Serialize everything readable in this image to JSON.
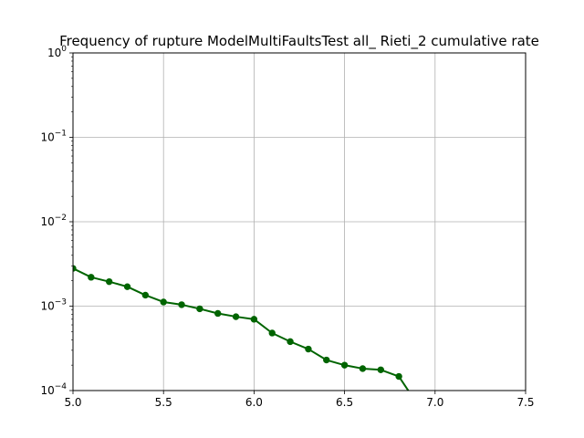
{
  "chart_data": {
    "type": "line",
    "title": "Frequency of rupture ModelMultiFaultsTest all_ Rieti_2 cumulative rate",
    "xlabel": "",
    "ylabel": "",
    "xlim": [
      5.0,
      7.5
    ],
    "ylim": [
      0.0001,
      1
    ],
    "yscale": "log",
    "grid": true,
    "x_ticks": [
      "5.0",
      "5.5",
      "6.0",
      "6.5",
      "7.0",
      "7.5"
    ],
    "y_ticks": [
      {
        "base": "10",
        "exp": "−4",
        "value": 0.0001
      },
      {
        "base": "10",
        "exp": "−3",
        "value": 0.001
      },
      {
        "base": "10",
        "exp": "−2",
        "value": 0.01
      },
      {
        "base": "10",
        "exp": "−1",
        "value": 0.1
      },
      {
        "base": "10",
        "exp": "0",
        "value": 1
      }
    ],
    "series": [
      {
        "color": "#006400",
        "x": [
          5.0,
          5.1,
          5.2,
          5.3,
          5.4,
          5.5,
          5.6,
          5.7,
          5.8,
          5.9,
          6.0,
          6.1,
          6.2,
          6.3,
          6.4,
          6.5,
          6.6,
          6.7,
          6.8,
          6.9
        ],
        "y": [
          0.0028,
          0.0022,
          0.00195,
          0.0017,
          0.00135,
          0.00112,
          0.00104,
          0.00093,
          0.00082,
          0.00075,
          0.0007,
          0.00048,
          0.00038,
          0.00031,
          0.00023,
          0.0002,
          0.000182,
          0.000176,
          0.000147,
          7e-05
        ]
      }
    ]
  }
}
